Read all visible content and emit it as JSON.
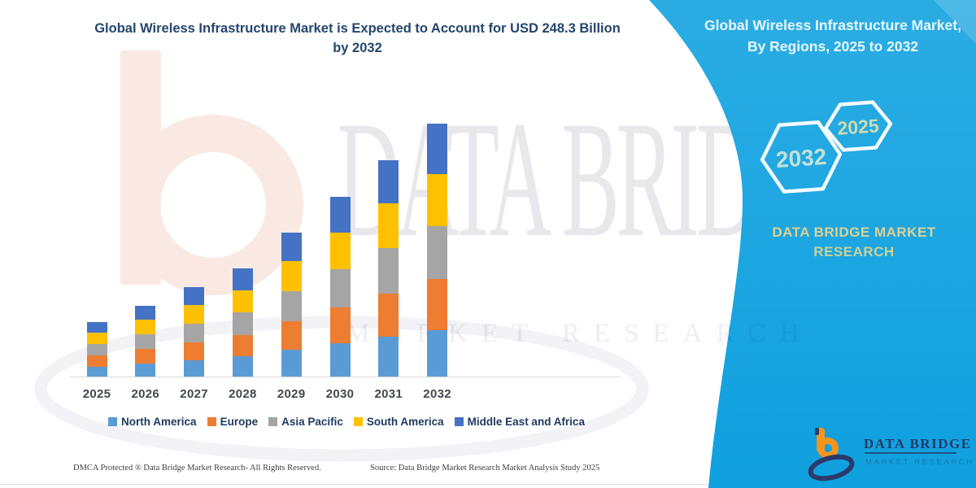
{
  "header": {
    "title": "Global Wireless Infrastructure Market is Expected to Account for USD 248.3 Billion by 2032"
  },
  "right_panel": {
    "title": "Global Wireless Infrastructure Market, By Regions, 2025 to 2032",
    "background_color": "#1BA7E2",
    "hexagons": [
      {
        "label": "2032"
      },
      {
        "label": "2025"
      }
    ],
    "brand_line1": "DATA BRIDGE MARKET",
    "brand_line2": "RESEARCH",
    "logo": {
      "name": "DATA BRIDGE",
      "subtitle": "MARKET RESEARCH"
    }
  },
  "chart_data": {
    "type": "bar",
    "stacked": true,
    "title": "Global Wireless Infrastructure Market is Expected to Account for USD 248.3 Billion by 2032",
    "unit": "USD Billion",
    "grid": false,
    "legend_position": "bottom",
    "categories": [
      "2025",
      "2026",
      "2027",
      "2028",
      "2029",
      "2030",
      "2031",
      "2032"
    ],
    "series": [
      {
        "name": "North America",
        "color": "#5B9BD5",
        "values": [
          9.9,
          12.9,
          16.2,
          19.6,
          26.1,
          32.7,
          39.3,
          45.9
        ]
      },
      {
        "name": "Europe",
        "color": "#ED7D31",
        "values": [
          10.7,
          13.9,
          17.5,
          21.2,
          28.3,
          35.3,
          42.5,
          49.7
        ]
      },
      {
        "name": "Asia Pacific",
        "color": "#A5A5A5",
        "values": [
          11.2,
          14.6,
          18.4,
          22.3,
          29.7,
          37.1,
          44.6,
          52.1
        ]
      },
      {
        "name": "South America",
        "color": "#FFC000",
        "values": [
          11.0,
          14.2,
          17.9,
          21.8,
          29.0,
          36.2,
          43.5,
          50.9
        ]
      },
      {
        "name": "Middle East and Africa",
        "color": "#4472C4",
        "values": [
          10.7,
          13.9,
          17.5,
          21.2,
          28.3,
          35.3,
          42.5,
          49.7
        ]
      }
    ],
    "totals": [
      53.5,
      69.5,
      87.5,
      106.1,
      141.4,
      176.6,
      212.4,
      248.3
    ],
    "ylim": [
      0,
      260
    ]
  },
  "footer": {
    "dmca": "DMCA Protected ® Data Bridge Market Research-  All Rights Reserved.",
    "source": "Source: Data Bridge Market Research  Market Analysis Study 2025"
  },
  "watermarks": {
    "big": "DATA BRIDGE",
    "spaced": "MARKET RESEARCH"
  }
}
